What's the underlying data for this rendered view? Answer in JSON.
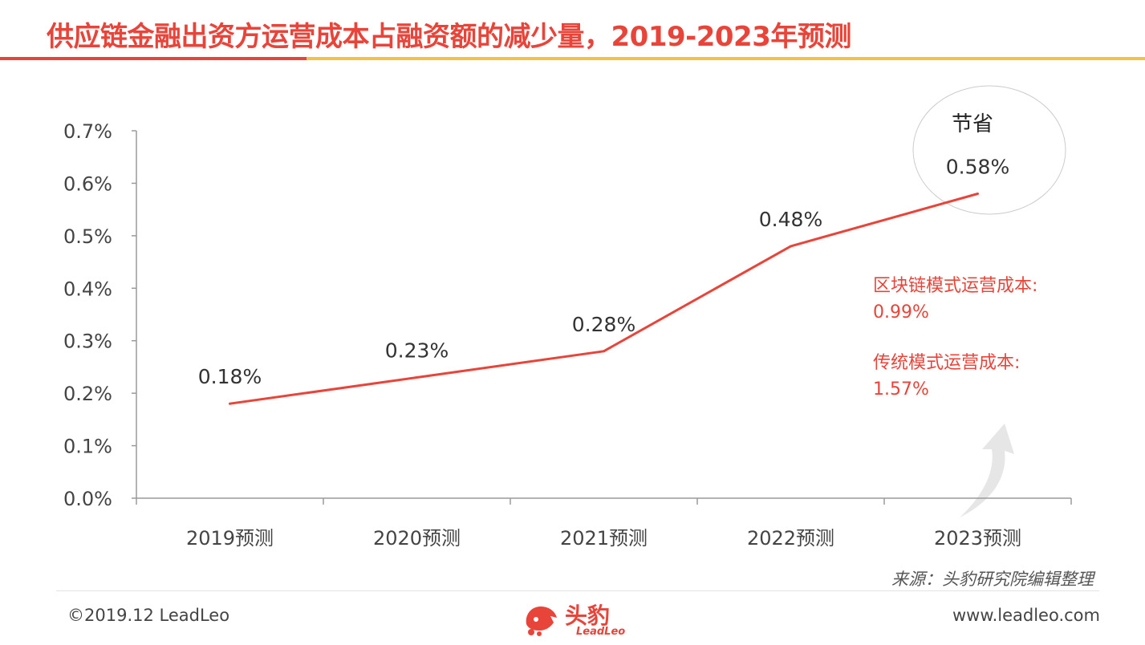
{
  "header": {
    "title": "供应链金融出资方运营成本占融资额的减少量，2019-2023年预测"
  },
  "chart_data": {
    "type": "line",
    "title": "供应链金融出资方运营成本占融资额的减少量，2019-2023年预测",
    "categories": [
      "2019预测",
      "2020预测",
      "2021预测",
      "2022预测",
      "2023预测"
    ],
    "series": [
      {
        "values": [
          0.18,
          0.23,
          0.28,
          0.48,
          0.58
        ]
      }
    ],
    "data_labels": [
      "0.18%",
      "0.23%",
      "0.28%",
      "0.48%",
      "0.58%"
    ],
    "y_ticks": [
      0.0,
      0.1,
      0.2,
      0.3,
      0.4,
      0.5,
      0.6,
      0.7
    ],
    "y_tick_labels": [
      "0.0%",
      "0.1%",
      "0.2%",
      "0.3%",
      "0.4%",
      "0.5%",
      "0.6%",
      "0.7%"
    ],
    "ylim": [
      0,
      0.7
    ],
    "y_unit": "%",
    "xlabel": "",
    "ylabel": "",
    "grid": false,
    "legend": "none",
    "line_color": "#e8443a"
  },
  "annotations": {
    "save_label": "节省",
    "blockchain_line1": "区块链模式运营成本:",
    "blockchain_line2": "0.99%",
    "traditional_line1": "传统模式运营成本:",
    "traditional_line2": "1.57%"
  },
  "footer": {
    "source": "来源：头豹研究院编辑整理",
    "copyright": "©2019.12 LeadLeo",
    "website": "www.leadleo.com",
    "brand_name": "头豹",
    "brand_sub": "LeadLeo"
  },
  "colors": {
    "accent": "#e8443a",
    "secondary": "#f5c142"
  },
  "icons": {
    "brand_logo": "leopard-head-icon",
    "growth_arrow": "curved-up-arrow-icon"
  }
}
